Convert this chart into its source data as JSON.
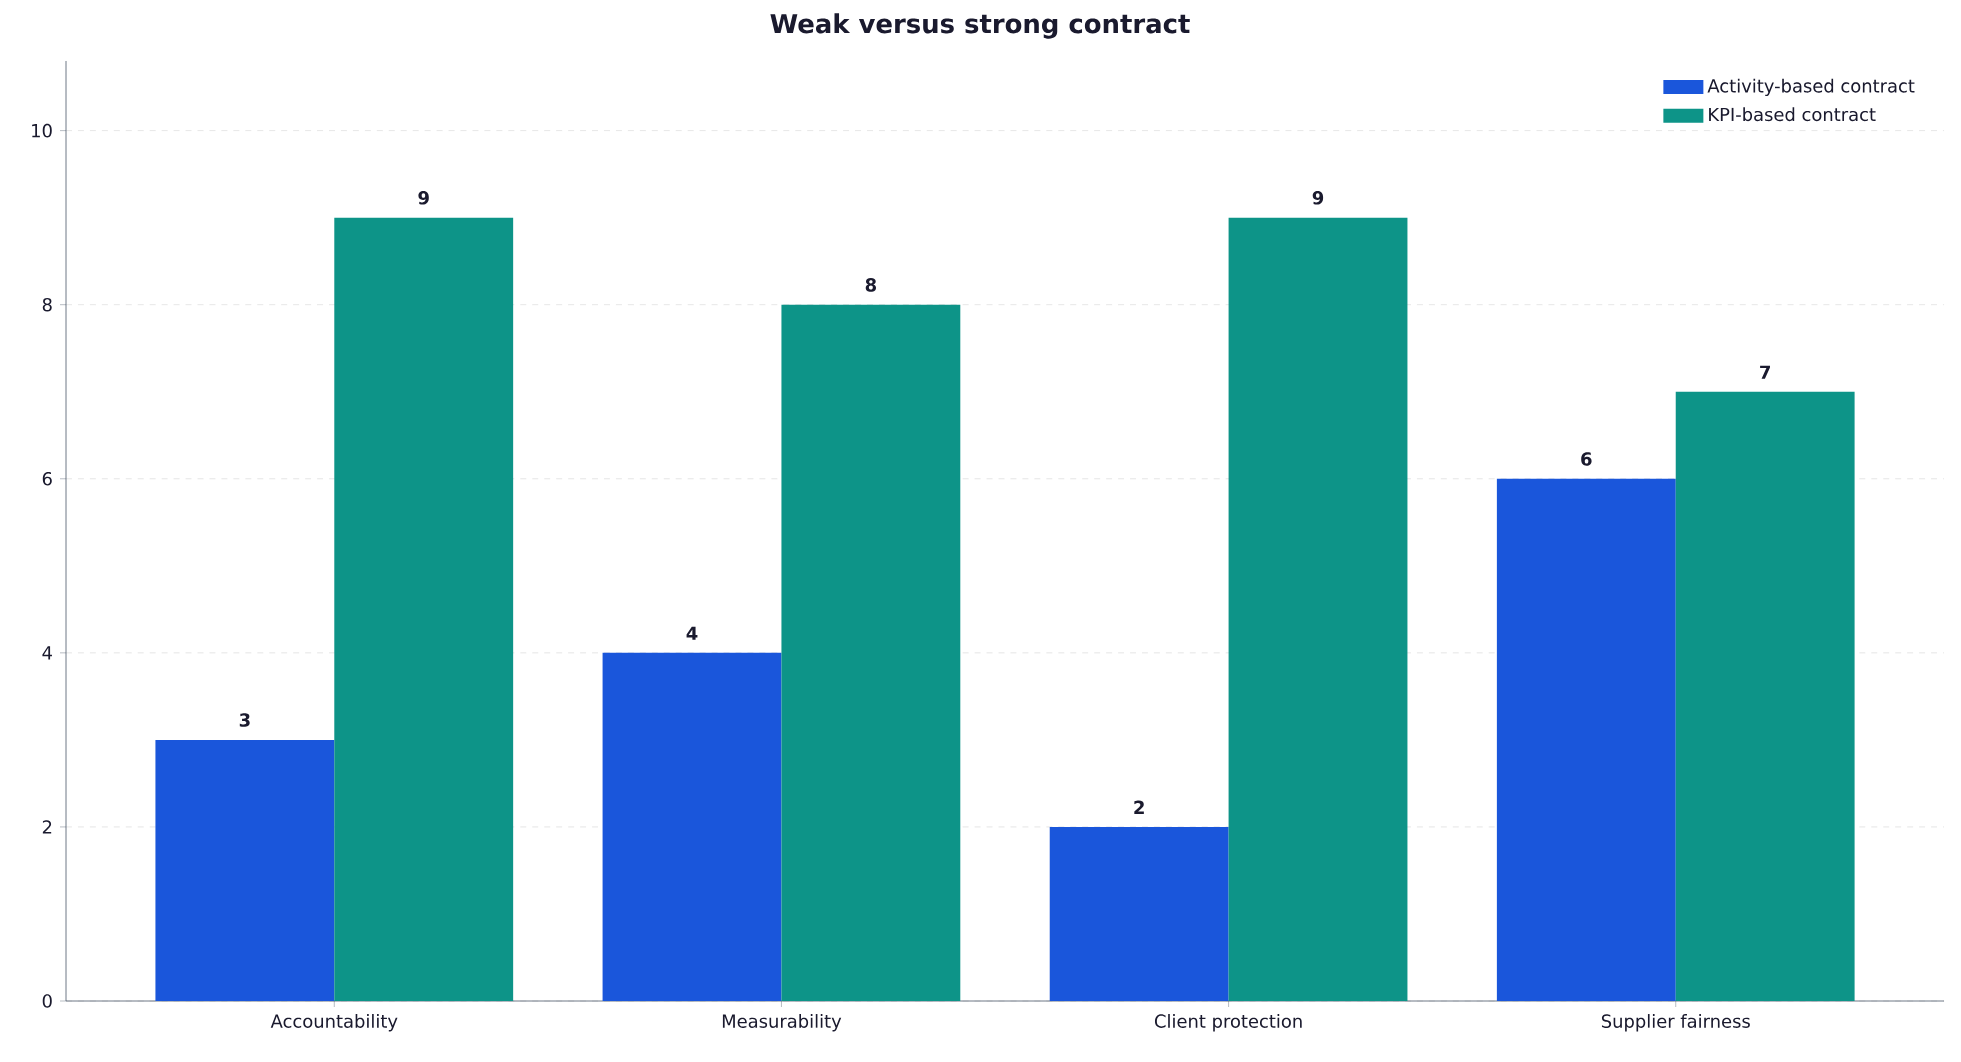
{
  "chart_data": {
    "type": "bar",
    "title": "Weak versus strong contract",
    "categories": [
      "Accountability",
      "Measurability",
      "Client protection",
      "Supplier fairness"
    ],
    "series": [
      {
        "name": "Activity-based contract",
        "color": "#1a56db",
        "values": [
          3,
          4,
          2,
          6
        ]
      },
      {
        "name": "KPI-based contract",
        "color": "#0d9488",
        "values": [
          9,
          8,
          9,
          7
        ]
      }
    ],
    "ylim": [
      0,
      10.8
    ],
    "yticks": [
      0,
      2,
      4,
      6,
      8,
      10
    ],
    "grid": "y",
    "legend": "top right",
    "data_labels": true
  }
}
